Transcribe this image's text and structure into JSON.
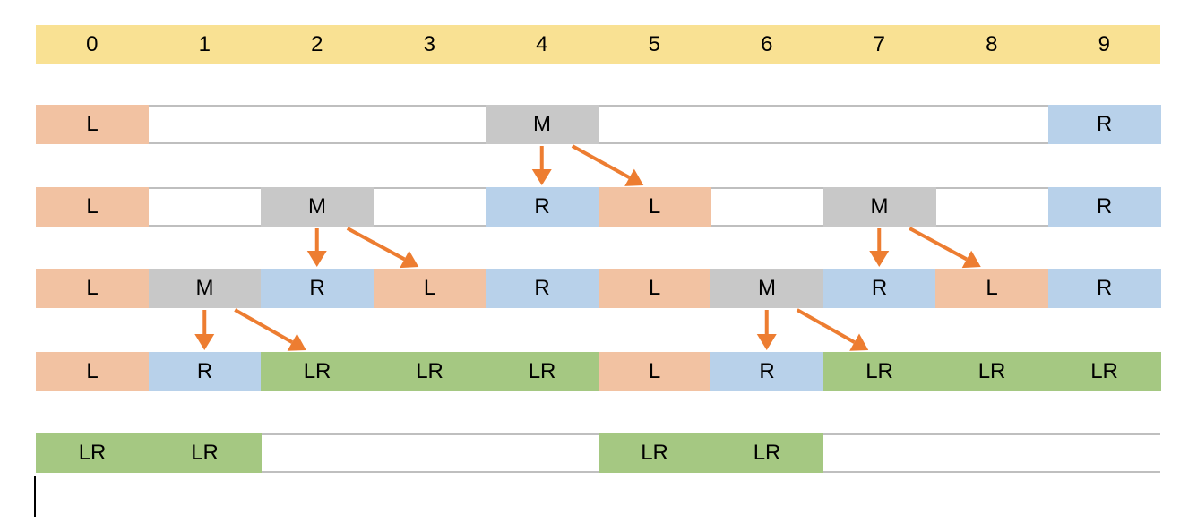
{
  "index_labels": [
    "0",
    "1",
    "2",
    "3",
    "4",
    "5",
    "6",
    "7",
    "8",
    "9"
  ],
  "rows": [
    [
      "L",
      "",
      "",
      "",
      "M",
      "",
      "",
      "",
      "",
      "R"
    ],
    [
      "L",
      "",
      "M",
      "",
      "R",
      "L",
      "",
      "M",
      "",
      "R"
    ],
    [
      "L",
      "M",
      "R",
      "L",
      "R",
      "L",
      "M",
      "R",
      "L",
      "R"
    ],
    [
      "L",
      "R",
      "LR",
      "LR",
      "LR",
      "L",
      "R",
      "LR",
      "LR",
      "LR"
    ],
    [
      "LR",
      "LR",
      "",
      "",
      "",
      "LR",
      "LR",
      "",
      "",
      ""
    ]
  ],
  "arrows": [
    {
      "from_row": 0,
      "from_col": 4,
      "to_row": 1,
      "to_col": 4,
      "kind": "down"
    },
    {
      "from_row": 0,
      "from_col": 4,
      "to_row": 1,
      "to_col": 5,
      "kind": "diag"
    },
    {
      "from_row": 1,
      "from_col": 2,
      "to_row": 2,
      "to_col": 2,
      "kind": "down"
    },
    {
      "from_row": 1,
      "from_col": 2,
      "to_row": 2,
      "to_col": 3,
      "kind": "diag"
    },
    {
      "from_row": 1,
      "from_col": 7,
      "to_row": 2,
      "to_col": 7,
      "kind": "down"
    },
    {
      "from_row": 1,
      "from_col": 7,
      "to_row": 2,
      "to_col": 8,
      "kind": "diag"
    },
    {
      "from_row": 2,
      "from_col": 1,
      "to_row": 3,
      "to_col": 1,
      "kind": "down"
    },
    {
      "from_row": 2,
      "from_col": 1,
      "to_row": 3,
      "to_col": 2,
      "kind": "diag"
    },
    {
      "from_row": 2,
      "from_col": 6,
      "to_row": 3,
      "to_col": 6,
      "kind": "down"
    },
    {
      "from_row": 2,
      "from_col": 6,
      "to_row": 3,
      "to_col": 7,
      "kind": "diag"
    }
  ],
  "colors": {
    "L": "#f2c2a2",
    "R": "#b8d1ea",
    "M": "#c8c8c8",
    "LR": "#a5c882",
    "index": "#f9e193",
    "arrow": "#ed7d31",
    "rule": "#bfbfbf"
  }
}
